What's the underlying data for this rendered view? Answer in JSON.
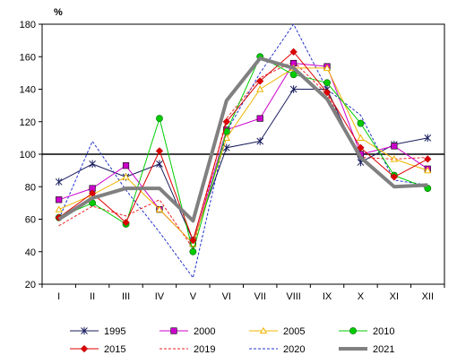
{
  "chart_data": {
    "type": "line",
    "title": "",
    "xlabel": "",
    "ylabel": "%",
    "ylim": [
      20,
      180
    ],
    "yticks": [
      20,
      40,
      60,
      80,
      100,
      120,
      140,
      160,
      180
    ],
    "grid": false,
    "reference_line": 100,
    "legend_position": "bottom",
    "categories": [
      "I",
      "II",
      "III",
      "IV",
      "V",
      "VI",
      "VII",
      "VIII",
      "IX",
      "X",
      "XI",
      "XII"
    ],
    "series": [
      {
        "name": "1995",
        "color": "#1a1f5e",
        "marker": "star",
        "dash": "",
        "width": 1,
        "values": [
          83,
          94,
          86,
          94,
          47,
          104,
          108,
          140,
          140,
          95,
          106,
          110
        ]
      },
      {
        "name": "2000",
        "color": "#cc00cc",
        "marker": "square",
        "dash": "",
        "width": 1,
        "values": [
          72,
          79,
          93,
          66,
          45,
          115,
          122,
          156,
          154,
          100,
          105,
          91
        ]
      },
      {
        "name": "2005",
        "color": "#f0b400",
        "marker": "triangle",
        "dash": "",
        "width": 1,
        "values": [
          66,
          75,
          86,
          66,
          45,
          110,
          140,
          153,
          153,
          110,
          97,
          90
        ]
      },
      {
        "name": "2010",
        "color": "#00cc00",
        "marker": "circle",
        "dash": "",
        "width": 1,
        "values": [
          61,
          70,
          57,
          122,
          40,
          114,
          160,
          149,
          144,
          119,
          87,
          79
        ]
      },
      {
        "name": "2015",
        "color": "#dd0000",
        "marker": "diamond",
        "dash": "",
        "width": 1,
        "values": [
          61,
          76,
          58,
          102,
          47,
          120,
          145,
          163,
          138,
          104,
          86,
          97
        ]
      },
      {
        "name": "2019",
        "color": "#ee2222",
        "marker": "none",
        "dash": "3,2",
        "width": 1,
        "values": [
          56,
          68,
          62,
          72,
          42,
          122,
          147,
          157,
          137,
          98,
          97,
          98
        ]
      },
      {
        "name": "2020",
        "color": "#2233cc",
        "marker": "none",
        "dash": "3,2",
        "width": 1,
        "values": [
          60,
          108,
          78,
          52,
          24,
          114,
          150,
          180,
          140,
          124,
          84,
          81
        ]
      },
      {
        "name": "2021",
        "color": "#808080",
        "marker": "none",
        "dash": "",
        "width": 4,
        "values": [
          60,
          73,
          79,
          79,
          59,
          133,
          159,
          153,
          134,
          98,
          80,
          81
        ]
      }
    ]
  }
}
